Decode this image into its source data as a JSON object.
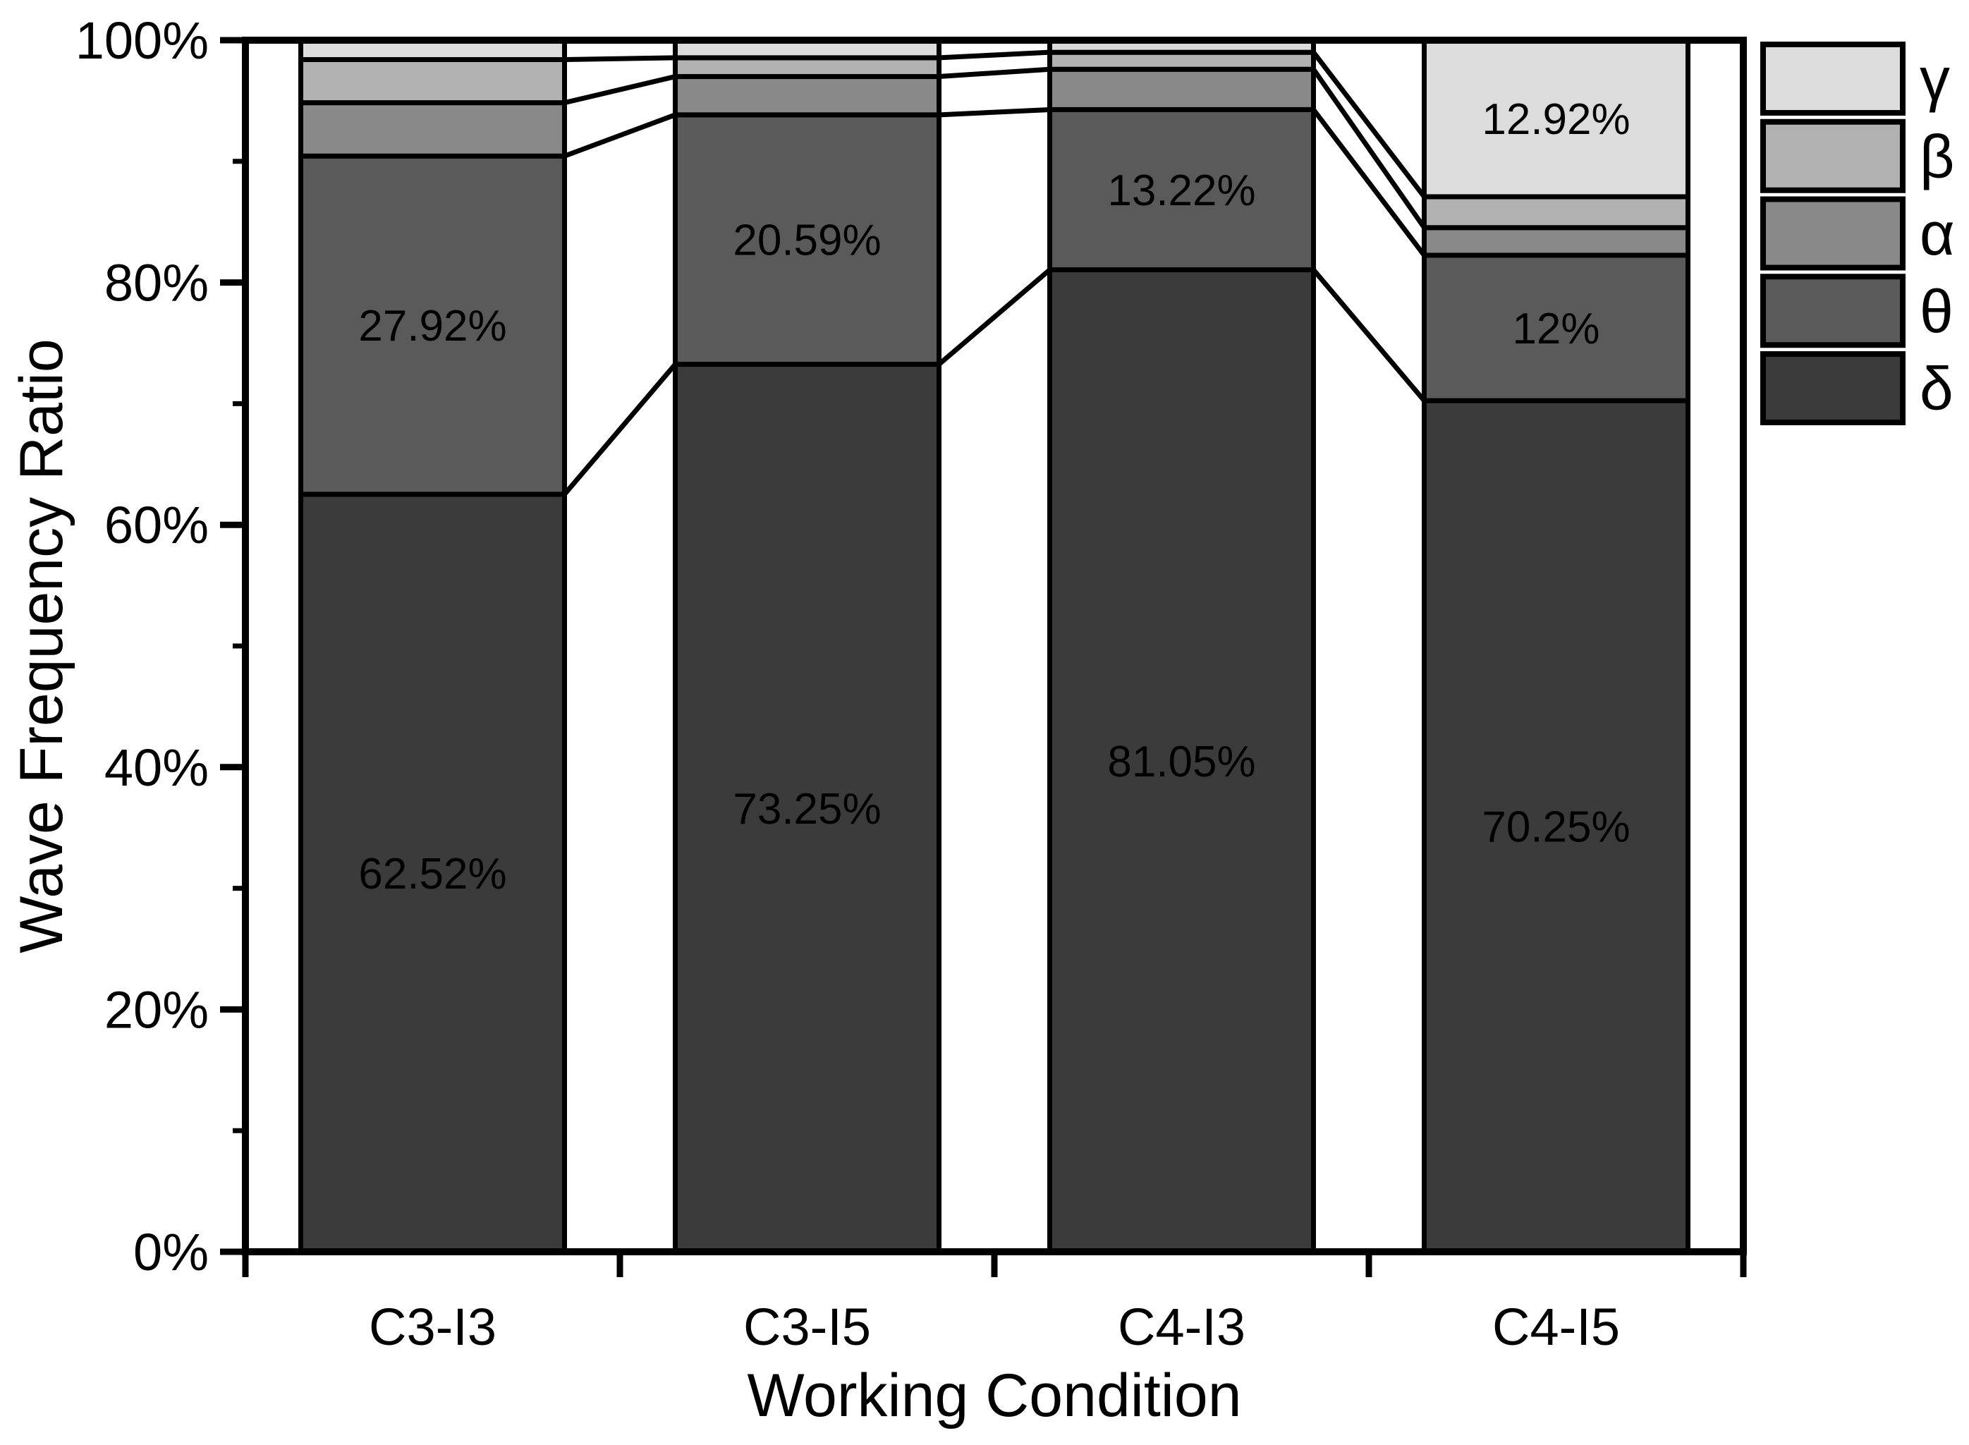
{
  "figure": {
    "background": "#ffffff",
    "frame_color": "#000000",
    "y_axis": {
      "title": "Wave Frequency Ratio",
      "tick_labels": [
        "0%",
        "20%",
        "40%",
        "60%",
        "80%",
        "100%"
      ],
      "tick_values": [
        0,
        20,
        40,
        60,
        80,
        100
      ],
      "minor_tick_values": [
        10,
        30,
        50,
        70,
        90
      ]
    },
    "x_axis": {
      "title": "Working Condition"
    }
  },
  "legend": {
    "position": "top-right-outside",
    "entries": [
      {
        "label": "γ",
        "color": "#dcdcdc"
      },
      {
        "label": "β",
        "color": "#b2b2b2"
      },
      {
        "label": "α",
        "color": "#898989"
      },
      {
        "label": "θ",
        "color": "#5a5a5a"
      },
      {
        "label": "δ",
        "color": "#3b3b3b"
      }
    ]
  },
  "chart_data": {
    "type": "bar",
    "stacked": true,
    "unit": "%",
    "title": "",
    "xlabel": "Working Condition",
    "ylabel": "Wave Frequency Ratio",
    "ylim": [
      0,
      100
    ],
    "grid": false,
    "categories": [
      "C3-I3",
      "C3-I5",
      "C4-I3",
      "C4-I5"
    ],
    "series": [
      {
        "name": "δ",
        "color": "#3b3b3b",
        "values": [
          62.52,
          73.25,
          81.05,
          70.25
        ],
        "data_labels": [
          "62.52%",
          "73.25%",
          "81.05%",
          "70.25%"
        ],
        "label_color": "#ffffff"
      },
      {
        "name": "θ",
        "color": "#5a5a5a",
        "values": [
          27.92,
          20.59,
          13.22,
          12
        ],
        "data_labels": [
          "27.92%",
          "20.59%",
          "13.22%",
          "12%"
        ],
        "label_color": "#ffffff"
      },
      {
        "name": "α",
        "color": "#898989",
        "values": [
          4.4,
          3.16,
          3.33,
          2.28
        ],
        "data_labels": [
          null,
          null,
          null,
          null
        ],
        "label_color": "#ffffff"
      },
      {
        "name": "β",
        "color": "#b2b2b2",
        "values": [
          3.56,
          1.55,
          1.4,
          2.55
        ],
        "data_labels": [
          null,
          null,
          null,
          null
        ],
        "label_color": "#000000"
      },
      {
        "name": "γ",
        "color": "#dcdcdc",
        "values": [
          1.6,
          1.45,
          1.0,
          12.92
        ],
        "data_labels": [
          null,
          null,
          null,
          "12.92%"
        ],
        "label_color": "#000000"
      }
    ],
    "connectors": true,
    "legend_order": [
      "γ",
      "β",
      "α",
      "θ",
      "δ"
    ]
  }
}
